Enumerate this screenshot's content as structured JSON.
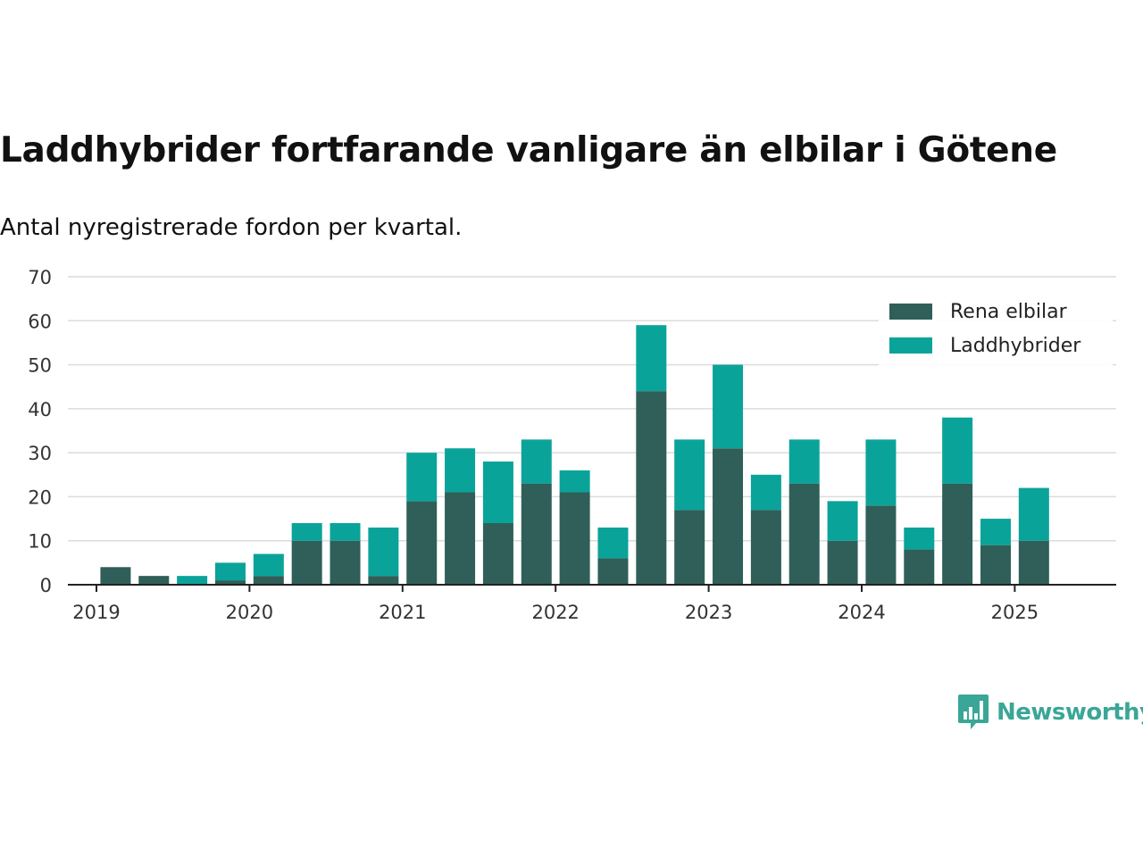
{
  "title": "Laddhybrider fortfarande vanligare än elbilar i Götene",
  "subtitle": "Antal nyregistrerade fordon per kvartal.",
  "brand": {
    "name": "Newsworthy",
    "logo_icon": "bar-chart-speech-bubble-icon",
    "color": "#3aa698"
  },
  "chart_data": {
    "type": "bar",
    "stacked": true,
    "x_unit": "quarter",
    "categories": [
      "2019 Q1",
      "2019 Q2",
      "2019 Q3",
      "2019 Q4",
      "2020 Q1",
      "2020 Q2",
      "2020 Q3",
      "2020 Q4",
      "2021 Q1",
      "2021 Q2",
      "2021 Q3",
      "2021 Q4",
      "2022 Q1",
      "2022 Q2",
      "2022 Q3",
      "2022 Q4",
      "2023 Q1",
      "2023 Q2",
      "2023 Q3",
      "2023 Q4",
      "2024 Q1",
      "2024 Q2",
      "2024 Q3",
      "2024 Q4",
      "2025 Q1",
      "2025 Q2"
    ],
    "series": [
      {
        "name": "Rena elbilar",
        "color": "#2f5f58",
        "values": [
          4,
          2,
          0,
          1,
          2,
          10,
          10,
          2,
          19,
          21,
          14,
          23,
          21,
          6,
          44,
          17,
          31,
          17,
          23,
          10,
          18,
          8,
          23,
          9,
          10,
          0
        ]
      },
      {
        "name": "Laddhybrider",
        "color": "#0aa39a",
        "values": [
          0,
          0,
          2,
          4,
          5,
          4,
          4,
          11,
          11,
          10,
          14,
          10,
          5,
          7,
          15,
          16,
          19,
          8,
          10,
          9,
          15,
          5,
          15,
          6,
          12,
          0
        ]
      }
    ],
    "x_tick_labels": [
      "2019",
      "2020",
      "2021",
      "2022",
      "2023",
      "2024",
      "2025"
    ],
    "ylim": [
      0,
      70
    ],
    "y_ticks": [
      0,
      10,
      20,
      30,
      40,
      50,
      60,
      70
    ],
    "grid": true,
    "legend_position": "top-right",
    "xlabel": "",
    "ylabel": ""
  }
}
